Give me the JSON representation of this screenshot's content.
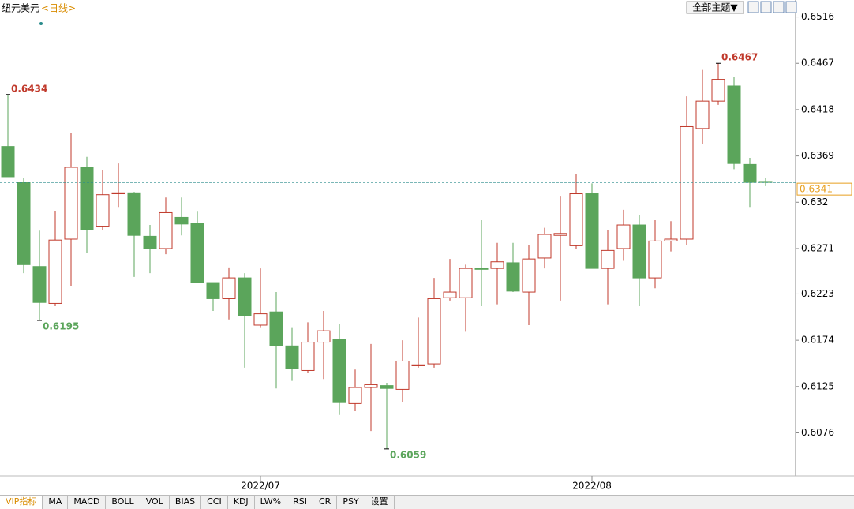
{
  "chart_data": {
    "type": "candlestick",
    "title": "纽元美元",
    "period": "<日线>",
    "open": [
      0.6379,
      0.6341,
      0.6252,
      0.6213,
      0.6281,
      0.6357,
      0.6294,
      0.6329,
      0.633,
      0.6284,
      0.6271,
      0.6304,
      0.6298,
      0.6235,
      0.6218,
      0.624,
      0.619,
      0.6204,
      0.6168,
      0.6142,
      0.6172,
      0.6175,
      0.6107,
      0.6124,
      0.6126,
      0.6122,
      0.6147,
      0.6149,
      0.6219,
      0.6219,
      0.625,
      0.625,
      0.6256,
      0.6225,
      0.6261,
      0.6285,
      0.6274,
      0.6329,
      0.625,
      0.6271,
      0.6296,
      0.624,
      0.6279,
      0.6281,
      0.6398,
      0.6427,
      0.6443,
      0.636,
      0.6342
    ],
    "high": [
      0.6434,
      0.6346,
      0.629,
      0.6311,
      0.6393,
      0.6368,
      0.6354,
      0.6361,
      0.6331,
      0.6296,
      0.6325,
      0.6325,
      0.631,
      0.6235,
      0.6251,
      0.6245,
      0.625,
      0.6225,
      0.6187,
      0.6193,
      0.6205,
      0.6191,
      0.6143,
      0.617,
      0.6129,
      0.6174,
      0.6198,
      0.624,
      0.626,
      0.6254,
      0.6301,
      0.6277,
      0.6277,
      0.6275,
      0.6293,
      0.6326,
      0.635,
      0.634,
      0.6291,
      0.6312,
      0.6306,
      0.6301,
      0.63,
      0.6432,
      0.646,
      0.6467,
      0.6453,
      0.6367,
      0.6346
    ],
    "low": [
      0.6347,
      0.6245,
      0.6195,
      0.621,
      0.6231,
      0.6266,
      0.6291,
      0.6315,
      0.6241,
      0.6245,
      0.6265,
      0.6285,
      0.6235,
      0.6205,
      0.6196,
      0.6145,
      0.6187,
      0.6123,
      0.6131,
      0.6139,
      0.6133,
      0.6095,
      0.6099,
      0.6078,
      0.6059,
      0.6109,
      0.6145,
      0.6145,
      0.6216,
      0.6183,
      0.621,
      0.6212,
      0.6225,
      0.619,
      0.625,
      0.6216,
      0.6271,
      0.625,
      0.6212,
      0.6258,
      0.621,
      0.6229,
      0.6268,
      0.6275,
      0.6382,
      0.6423,
      0.6355,
      0.6315,
      0.6337
    ],
    "close": [
      0.6347,
      0.6254,
      0.6214,
      0.628,
      0.6357,
      0.6291,
      0.6328,
      0.633,
      0.6285,
      0.6271,
      0.6309,
      0.6297,
      0.6235,
      0.6218,
      0.624,
      0.62,
      0.6202,
      0.6168,
      0.6144,
      0.6172,
      0.6184,
      0.6108,
      0.6124,
      0.6127,
      0.6123,
      0.6152,
      0.6148,
      0.6218,
      0.6225,
      0.625,
      0.6249,
      0.6257,
      0.6226,
      0.626,
      0.6286,
      0.6287,
      0.6329,
      0.625,
      0.6269,
      0.6296,
      0.624,
      0.6279,
      0.6281,
      0.64,
      0.6427,
      0.645,
      0.6361,
      0.6341,
      0.6341
    ],
    "up_color": "#c0392b",
    "down_color": "#5ba55b",
    "ylim": [
      0.6033,
      0.6534
    ],
    "yticks": [
      0.6516,
      0.6467,
      0.6418,
      0.6369,
      0.632,
      0.6271,
      0.6223,
      0.6174,
      0.6125,
      0.6076
    ],
    "xlim": [
      -0.5,
      50
    ],
    "xticks": [
      {
        "value": 16,
        "label": "2022/07"
      },
      {
        "value": 37,
        "label": "2022/08"
      }
    ],
    "annotations": [
      0.6434,
      0.6195,
      0.6059,
      0.6467
    ],
    "last_price": 0.6341
  },
  "toolbar": {
    "theme_button": "全部主题▼"
  },
  "tabs": [
    "VIP指标",
    "MA",
    "MACD",
    "BOLL",
    "VOL",
    "BIAS",
    "CCI",
    "KDJ",
    "LW%",
    "RSI",
    "CR",
    "PSY",
    "设置"
  ]
}
